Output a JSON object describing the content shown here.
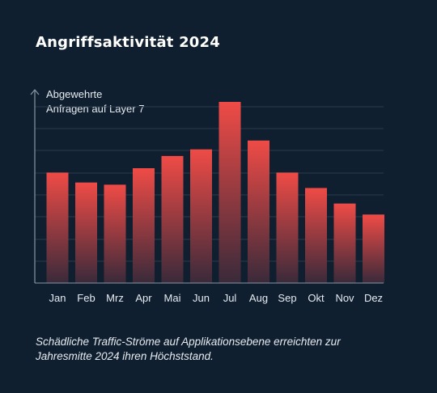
{
  "title": "Angriffsaktivität 2024",
  "caption": "Schädliche Traffic-Ströme auf Applikationsebene erreichten zur Jahresmitte 2024 ihren Höchststand.",
  "colors": {
    "background": "#0f1f2f",
    "bar_top": "#ef4b46",
    "bar_bottom": "#3a2a3a",
    "grid": "#2b3b4b",
    "axis": "#8a96a3"
  },
  "chart_data": {
    "type": "bar",
    "ylabel_lines": [
      "Abgewehrte",
      "Anfragen auf Layer 7"
    ],
    "categories": [
      "Jan",
      "Feb",
      "Mrz",
      "Apr",
      "Mai",
      "Jun",
      "Jul",
      "Aug",
      "Sep",
      "Okt",
      "Nov",
      "Dez"
    ],
    "values": [
      5.0,
      4.55,
      4.45,
      5.2,
      5.75,
      6.05,
      8.2,
      6.45,
      5.0,
      4.3,
      3.6,
      3.1
    ],
    "ylim": [
      0,
      8.2
    ],
    "grid": true
  }
}
